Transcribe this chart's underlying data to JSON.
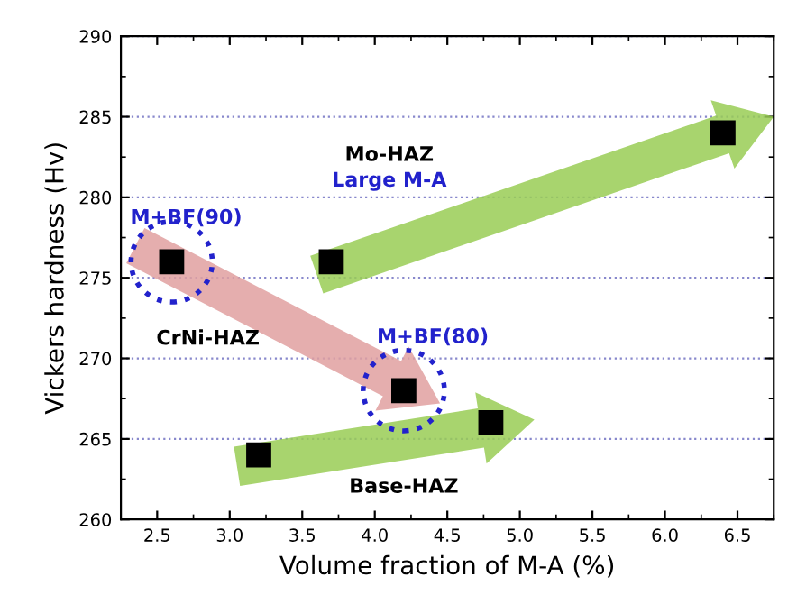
{
  "chart_data": {
    "type": "scatter",
    "xlabel": "Volume fraction of M-A (%)",
    "ylabel": "Vickers hardness (Hv)",
    "x": [
      2.6,
      4.2,
      3.2,
      4.8,
      3.7,
      6.4
    ],
    "series": [
      {
        "color": "#000000",
        "values": [
          276,
          268,
          264,
          266,
          276,
          284
        ]
      }
    ],
    "marker": "square",
    "xlim": [
      2.25,
      6.75
    ],
    "xticks": [
      2.5,
      {
        "value": 3,
        "label": "3.0"
      },
      3.5,
      {
        "value": 4,
        "label": "4.0"
      },
      4.5,
      {
        "value": 5,
        "label": "5.0"
      },
      5.5,
      {
        "value": 6,
        "label": "6.0"
      },
      6.5
    ],
    "ylim": [
      260,
      290
    ],
    "yticks": [
      260,
      265,
      270,
      275,
      280,
      285,
      290
    ],
    "grid": "y",
    "legend": false,
    "annotations": [
      "Mo-HAZ",
      "Large M-A",
      "M+BF(90)",
      "CrNi-HAZ",
      "M+BF(80)",
      "Base-HAZ"
    ]
  }
}
